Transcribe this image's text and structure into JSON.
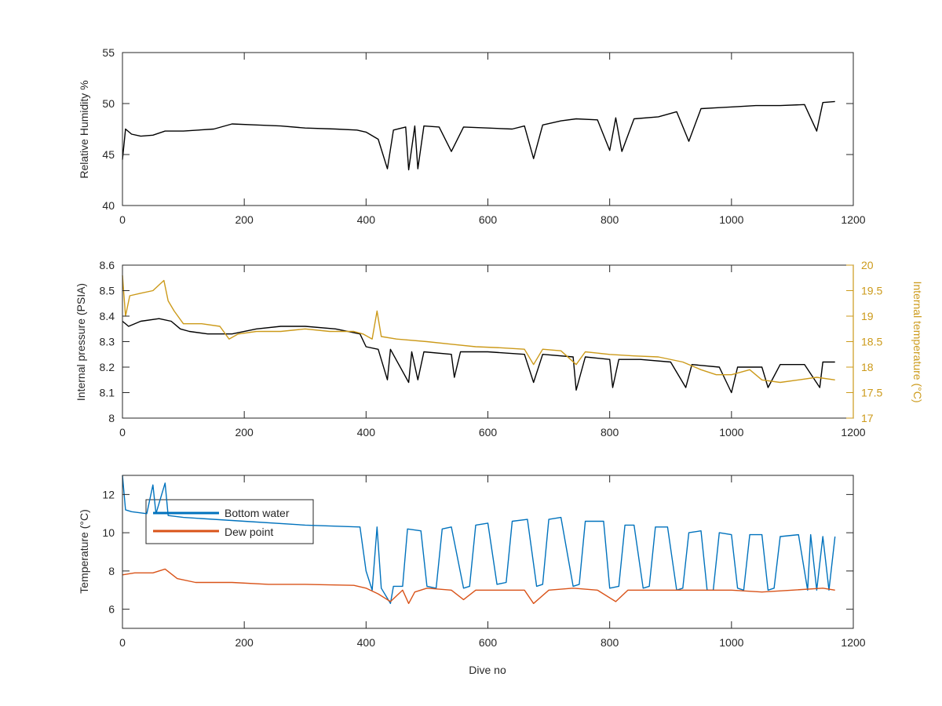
{
  "chart_data": [
    {
      "type": "line",
      "ylabel": "Relative Humidity %",
      "xlim": [
        0,
        1200
      ],
      "ylim": [
        40,
        55
      ],
      "xticks": [
        "0",
        "200",
        "400",
        "600",
        "800",
        "1000",
        "1200"
      ],
      "yticks": [
        "40",
        "45",
        "50",
        "55"
      ],
      "series": [
        {
          "color": "#000000",
          "points": [
            [
              0,
              44.5
            ],
            [
              5,
              47.5
            ],
            [
              15,
              47
            ],
            [
              30,
              46.8
            ],
            [
              50,
              46.9
            ],
            [
              70,
              47.3
            ],
            [
              100,
              47.3
            ],
            [
              150,
              47.5
            ],
            [
              180,
              48
            ],
            [
              220,
              47.9
            ],
            [
              260,
              47.8
            ],
            [
              300,
              47.6
            ],
            [
              350,
              47.5
            ],
            [
              385,
              47.4
            ],
            [
              400,
              47.2
            ],
            [
              420,
              46.5
            ],
            [
              435,
              43.6
            ],
            [
              445,
              47.4
            ],
            [
              465,
              47.7
            ],
            [
              470,
              43.5
            ],
            [
              480,
              47.8
            ],
            [
              485,
              43.6
            ],
            [
              495,
              47.8
            ],
            [
              520,
              47.7
            ],
            [
              540,
              45.3
            ],
            [
              560,
              47.7
            ],
            [
              600,
              47.6
            ],
            [
              640,
              47.5
            ],
            [
              660,
              47.8
            ],
            [
              675,
              44.6
            ],
            [
              690,
              47.9
            ],
            [
              720,
              48.3
            ],
            [
              745,
              48.5
            ],
            [
              780,
              48.4
            ],
            [
              800,
              45.4
            ],
            [
              810,
              48.6
            ],
            [
              820,
              45.3
            ],
            [
              840,
              48.5
            ],
            [
              880,
              48.7
            ],
            [
              910,
              49.2
            ],
            [
              930,
              46.3
            ],
            [
              950,
              49.5
            ],
            [
              980,
              49.6
            ],
            [
              1010,
              49.7
            ],
            [
              1040,
              49.8
            ],
            [
              1080,
              49.8
            ],
            [
              1120,
              49.9
            ],
            [
              1140,
              47.3
            ],
            [
              1150,
              50.1
            ],
            [
              1170,
              50.2
            ]
          ]
        }
      ]
    },
    {
      "type": "line",
      "ylabel": "Internal pressure (PSIA)",
      "ylabel_right": "Internal temperature (°C)",
      "xlim": [
        0,
        1200
      ],
      "ylim": [
        8,
        8.6
      ],
      "ylim_right": [
        17,
        20
      ],
      "xticks": [
        "0",
        "200",
        "400",
        "600",
        "800",
        "1000",
        "1200"
      ],
      "yticks": [
        "8",
        "8.1",
        "8.2",
        "8.3",
        "8.4",
        "8.5",
        "8.6"
      ],
      "yticks_right": [
        "17",
        "17.5",
        "18",
        "18.5",
        "19",
        "19.5",
        "20"
      ],
      "series": [
        {
          "color": "#000000",
          "axis": "left",
          "points": [
            [
              0,
              8.38
            ],
            [
              10,
              8.36
            ],
            [
              30,
              8.38
            ],
            [
              60,
              8.39
            ],
            [
              80,
              8.38
            ],
            [
              95,
              8.35
            ],
            [
              110,
              8.34
            ],
            [
              140,
              8.33
            ],
            [
              180,
              8.33
            ],
            [
              220,
              8.35
            ],
            [
              260,
              8.36
            ],
            [
              300,
              8.36
            ],
            [
              350,
              8.35
            ],
            [
              390,
              8.33
            ],
            [
              400,
              8.28
            ],
            [
              420,
              8.27
            ],
            [
              435,
              8.15
            ],
            [
              440,
              8.27
            ],
            [
              470,
              8.14
            ],
            [
              475,
              8.26
            ],
            [
              485,
              8.15
            ],
            [
              495,
              8.26
            ],
            [
              540,
              8.25
            ],
            [
              545,
              8.16
            ],
            [
              555,
              8.26
            ],
            [
              600,
              8.26
            ],
            [
              660,
              8.25
            ],
            [
              675,
              8.14
            ],
            [
              690,
              8.25
            ],
            [
              740,
              8.24
            ],
            [
              745,
              8.11
            ],
            [
              760,
              8.24
            ],
            [
              800,
              8.23
            ],
            [
              805,
              8.12
            ],
            [
              815,
              8.23
            ],
            [
              850,
              8.23
            ],
            [
              900,
              8.22
            ],
            [
              925,
              8.12
            ],
            [
              935,
              8.21
            ],
            [
              980,
              8.2
            ],
            [
              1000,
              8.1
            ],
            [
              1010,
              8.2
            ],
            [
              1050,
              8.2
            ],
            [
              1060,
              8.12
            ],
            [
              1080,
              8.21
            ],
            [
              1120,
              8.21
            ],
            [
              1145,
              8.12
            ],
            [
              1150,
              8.22
            ],
            [
              1170,
              8.22
            ]
          ]
        },
        {
          "color": "#CC9A1A",
          "axis": "right",
          "points": [
            [
              0,
              19.8
            ],
            [
              5,
              19.0
            ],
            [
              12,
              19.4
            ],
            [
              30,
              19.45
            ],
            [
              50,
              19.5
            ],
            [
              68,
              19.7
            ],
            [
              75,
              19.3
            ],
            [
              85,
              19.1
            ],
            [
              100,
              18.85
            ],
            [
              130,
              18.85
            ],
            [
              160,
              18.8
            ],
            [
              175,
              18.55
            ],
            [
              190,
              18.65
            ],
            [
              220,
              18.7
            ],
            [
              260,
              18.7
            ],
            [
              300,
              18.75
            ],
            [
              340,
              18.7
            ],
            [
              380,
              18.7
            ],
            [
              395,
              18.65
            ],
            [
              410,
              18.55
            ],
            [
              418,
              19.1
            ],
            [
              425,
              18.6
            ],
            [
              450,
              18.55
            ],
            [
              500,
              18.5
            ],
            [
              540,
              18.45
            ],
            [
              580,
              18.4
            ],
            [
              620,
              18.38
            ],
            [
              660,
              18.35
            ],
            [
              675,
              18.05
            ],
            [
              690,
              18.35
            ],
            [
              720,
              18.32
            ],
            [
              745,
              18.05
            ],
            [
              760,
              18.3
            ],
            [
              800,
              18.25
            ],
            [
              840,
              18.22
            ],
            [
              880,
              18.2
            ],
            [
              920,
              18.1
            ],
            [
              950,
              17.95
            ],
            [
              975,
              17.85
            ],
            [
              1000,
              17.85
            ],
            [
              1030,
              17.95
            ],
            [
              1050,
              17.75
            ],
            [
              1080,
              17.7
            ],
            [
              1110,
              17.75
            ],
            [
              1140,
              17.8
            ],
            [
              1170,
              17.75
            ]
          ]
        }
      ]
    },
    {
      "type": "line",
      "xlabel": "Dive no",
      "ylabel": "Temperature (°C)",
      "xlim": [
        0,
        1200
      ],
      "ylim": [
        5,
        13
      ],
      "xticks": [
        "0",
        "200",
        "400",
        "600",
        "800",
        "1000",
        "1200"
      ],
      "yticks": [
        "6",
        "8",
        "10",
        "12"
      ],
      "legend": {
        "position": "top-left",
        "entries": [
          {
            "name": "Bottom water",
            "color": "#0072BD"
          },
          {
            "name": "Dew point",
            "color": "#D95319"
          }
        ]
      },
      "series": [
        {
          "name": "Bottom water",
          "color": "#0072BD",
          "points": [
            [
              0,
              13
            ],
            [
              5,
              11.2
            ],
            [
              15,
              11.1
            ],
            [
              40,
              11
            ],
            [
              50,
              12.5
            ],
            [
              55,
              11
            ],
            [
              70,
              12.6
            ],
            [
              75,
              10.9
            ],
            [
              100,
              10.8
            ],
            [
              200,
              10.6
            ],
            [
              300,
              10.4
            ],
            [
              390,
              10.3
            ],
            [
              400,
              8
            ],
            [
              410,
              7
            ],
            [
              418,
              10.3
            ],
            [
              425,
              7.1
            ],
            [
              440,
              6.3
            ],
            [
              445,
              7.2
            ],
            [
              460,
              7.2
            ],
            [
              468,
              10.2
            ],
            [
              490,
              10.1
            ],
            [
              500,
              7.2
            ],
            [
              515,
              7.1
            ],
            [
              525,
              10.2
            ],
            [
              540,
              10.3
            ],
            [
              560,
              7.1
            ],
            [
              570,
              7.2
            ],
            [
              580,
              10.4
            ],
            [
              600,
              10.5
            ],
            [
              615,
              7.3
            ],
            [
              630,
              7.4
            ],
            [
              640,
              10.6
            ],
            [
              665,
              10.7
            ],
            [
              680,
              7.2
            ],
            [
              690,
              7.3
            ],
            [
              700,
              10.7
            ],
            [
              720,
              10.8
            ],
            [
              740,
              7.2
            ],
            [
              750,
              7.3
            ],
            [
              760,
              10.6
            ],
            [
              790,
              10.6
            ],
            [
              800,
              7.1
            ],
            [
              815,
              7.2
            ],
            [
              825,
              10.4
            ],
            [
              840,
              10.4
            ],
            [
              855,
              7.1
            ],
            [
              865,
              7.2
            ],
            [
              875,
              10.3
            ],
            [
              895,
              10.3
            ],
            [
              910,
              7.0
            ],
            [
              920,
              7.1
            ],
            [
              930,
              10.0
            ],
            [
              950,
              10.1
            ],
            [
              960,
              7.0
            ],
            [
              970,
              7.0
            ],
            [
              980,
              10.0
            ],
            [
              1000,
              9.9
            ],
            [
              1010,
              7.1
            ],
            [
              1020,
              7.0
            ],
            [
              1030,
              9.9
            ],
            [
              1050,
              9.9
            ],
            [
              1060,
              7.0
            ],
            [
              1070,
              7.1
            ],
            [
              1080,
              9.8
            ],
            [
              1110,
              9.9
            ],
            [
              1125,
              7.0
            ],
            [
              1130,
              9.9
            ],
            [
              1140,
              7.0
            ],
            [
              1150,
              9.8
            ],
            [
              1160,
              7.0
            ],
            [
              1170,
              9.8
            ]
          ]
        },
        {
          "name": "Dew point",
          "color": "#D95319",
          "points": [
            [
              0,
              7.8
            ],
            [
              20,
              7.9
            ],
            [
              50,
              7.9
            ],
            [
              70,
              8.1
            ],
            [
              90,
              7.6
            ],
            [
              120,
              7.4
            ],
            [
              180,
              7.4
            ],
            [
              240,
              7.3
            ],
            [
              300,
              7.3
            ],
            [
              380,
              7.25
            ],
            [
              400,
              7.1
            ],
            [
              420,
              6.8
            ],
            [
              440,
              6.4
            ],
            [
              460,
              7.0
            ],
            [
              470,
              6.3
            ],
            [
              480,
              6.9
            ],
            [
              500,
              7.1
            ],
            [
              540,
              7.0
            ],
            [
              560,
              6.5
            ],
            [
              580,
              7.0
            ],
            [
              620,
              7.0
            ],
            [
              660,
              7.0
            ],
            [
              675,
              6.3
            ],
            [
              700,
              7.0
            ],
            [
              740,
              7.1
            ],
            [
              780,
              7.0
            ],
            [
              810,
              6.4
            ],
            [
              830,
              7.0
            ],
            [
              880,
              7.0
            ],
            [
              920,
              7.0
            ],
            [
              950,
              7.0
            ],
            [
              1000,
              7.0
            ],
            [
              1050,
              6.9
            ],
            [
              1100,
              7.0
            ],
            [
              1150,
              7.1
            ],
            [
              1170,
              7.0
            ]
          ]
        }
      ]
    }
  ]
}
